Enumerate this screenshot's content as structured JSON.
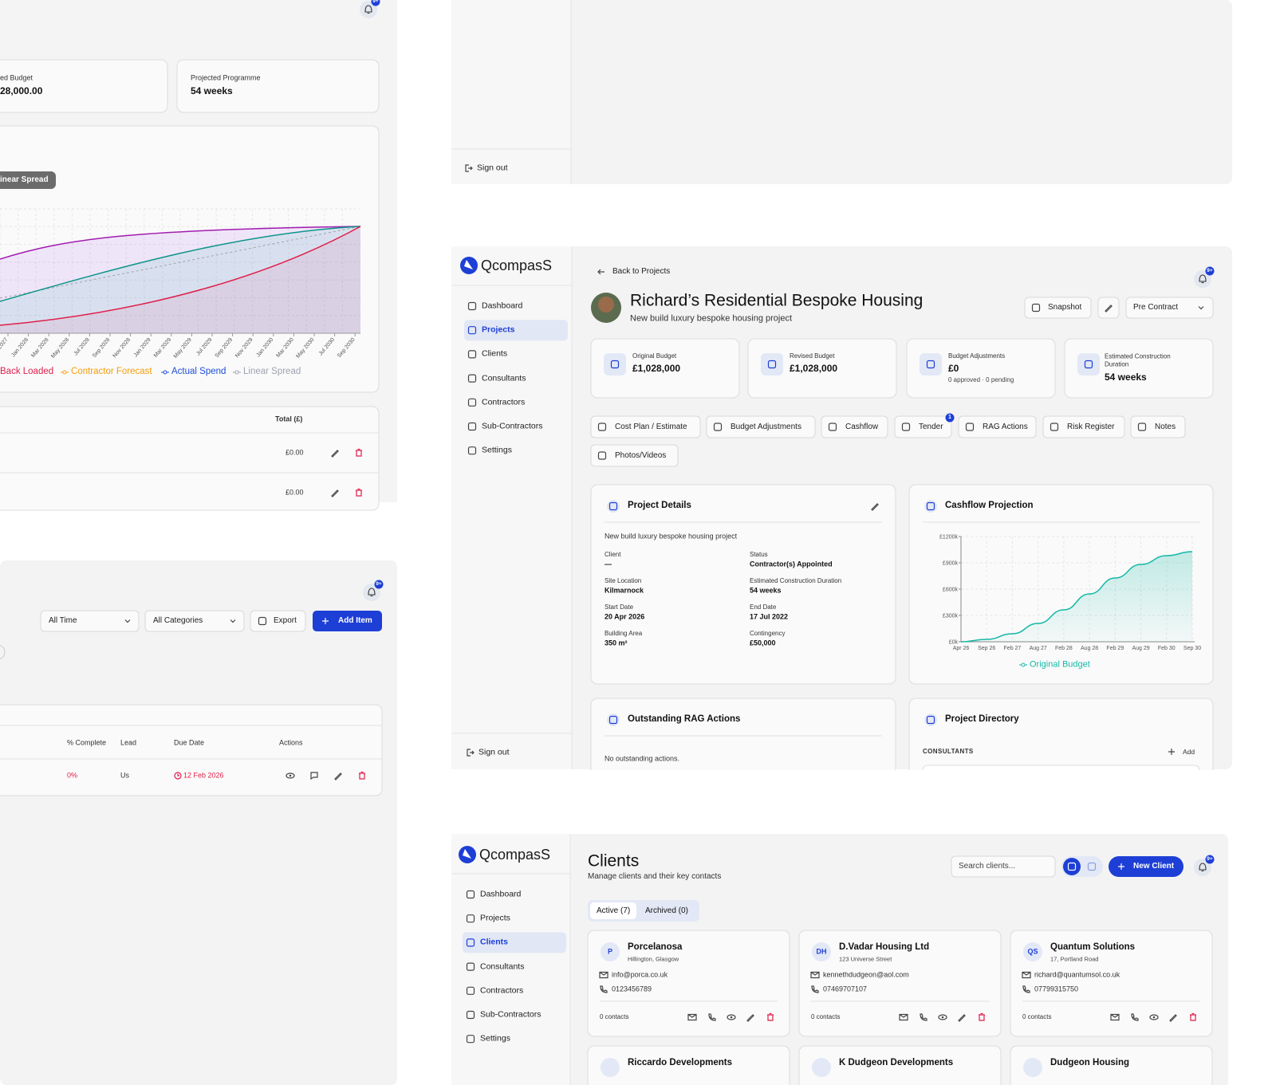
{
  "budget_panel": {
    "notification_badge": "9+",
    "cards": [
      {
        "label": "ed Budget",
        "value": "28,000.00"
      },
      {
        "label": "Projected Programme",
        "value": "54 weeks"
      }
    ],
    "spend_chart": {
      "tooltip": "inear Spread",
      "x_labels": [
        "ov 2027",
        "Jan 2028",
        "Mar 2028",
        "May 2028",
        "Jul 2028",
        "Sep 2028",
        "Nov 2028",
        "Jan 2029",
        "Mar 2029",
        "May 2029",
        "Jul 2029",
        "Sep 2029",
        "Nov 2029",
        "Jan 2030",
        "Mar 2030",
        "May 2030",
        "Jul 2030",
        "Sep 2030"
      ],
      "legend": [
        "Back Loaded",
        "Contractor Forecast",
        "Actual Spend",
        "Linear Spread"
      ]
    },
    "table": {
      "header": "Total (£)",
      "rows": [
        "£0.00",
        "£0.00"
      ]
    }
  },
  "sidebar_panel": {
    "sign_out": "Sign out"
  },
  "items_panel": {
    "notification_badge": "9+",
    "filters": [
      "All Time",
      "All Categories"
    ],
    "export": "Export",
    "add_item": "Add Item",
    "table": {
      "headers": [
        "% Complete",
        "Lead",
        "Due Date",
        "Actions"
      ],
      "row": [
        "0%",
        "Us",
        "12 Feb 2026"
      ]
    }
  },
  "project_panel": {
    "logo": "QcompasS",
    "nav": [
      "Dashboard",
      "Projects",
      "Clients",
      "Consultants",
      "Contractors",
      "Sub-Contractors",
      "Settings"
    ],
    "sign_out": "Sign out",
    "back": "Back to Projects",
    "notification_badge": "9+",
    "title": "Richard’s Residential Bespoke Housing",
    "subtitle": "New build luxury bespoke housing project",
    "snapshot": "Snapshot",
    "status": "Pre Contract",
    "stats": [
      {
        "label": "Original Budget",
        "value": "£1,028,000"
      },
      {
        "label": "Revised Budget",
        "value": "£1,028,000"
      },
      {
        "label": "Budget Adjustments",
        "value": "£0",
        "note": "0 approved · 0 pending"
      },
      {
        "label": "Estimated Construction Duration",
        "value": "54 weeks"
      }
    ],
    "tabs": [
      "Cost Plan / Estimate",
      "Budget Adjustments",
      "Cashflow",
      "Tender",
      "RAG Actions",
      "Risk Register",
      "Notes",
      "Photos/Videos"
    ],
    "tender_badge": "1",
    "details": {
      "title": "Project Details",
      "description": "New build luxury bespoke housing project",
      "fields": [
        {
          "label": "Client",
          "value": "—"
        },
        {
          "label": "Status",
          "value": "Contractor(s) Appointed"
        },
        {
          "label": "Site Location",
          "value": "Kilmarnock"
        },
        {
          "label": "Estimated Construction Duration",
          "value": "54 weeks"
        },
        {
          "label": "Start Date",
          "value": "20 Apr 2026"
        },
        {
          "label": "End Date",
          "value": "17 Jul 2022"
        },
        {
          "label": "Building Area",
          "value": "350 m²"
        },
        {
          "label": "Contingency",
          "value": "£50,000"
        }
      ]
    },
    "cashflow_title": "Cashflow Projection",
    "rag": {
      "title": "Outstanding RAG Actions",
      "empty": "No outstanding actions."
    },
    "directory": {
      "title": "Project Directory",
      "section": "CONSULTANTS",
      "add": "Add"
    }
  },
  "clients_panel": {
    "logo": "QcompasS",
    "nav": [
      "Dashboard",
      "Projects",
      "Clients",
      "Consultants",
      "Contractors",
      "Sub-Contractors",
      "Settings"
    ],
    "title": "Clients",
    "subtitle": "Manage clients and their key contacts",
    "search": "Search clients...",
    "new_client": "New Client",
    "notification_badge": "9+",
    "tabs": [
      "Active (7)",
      "Archived (0)"
    ],
    "clients": [
      {
        "initials": "P",
        "name": "Porcelanosa",
        "address": "Hillington, Glasgow",
        "email": "info@porca.co.uk",
        "phone": "0123456789",
        "contacts": "0 contacts"
      },
      {
        "initials": "DH",
        "name": "D.Vadar Housing Ltd",
        "address": "123 Universe Street",
        "email": "kennethdudgeon@aol.com",
        "phone": "07469707107",
        "contacts": "0 contacts"
      },
      {
        "initials": "QS",
        "name": "Quantum Solutions",
        "address": "17, Portland Road",
        "email": "richard@quantumsol.co.uk",
        "phone": "07799315750",
        "contacts": "0 contacts"
      }
    ],
    "more_clients": [
      "Riccardo Developments",
      "K Dudgeon Developments",
      "Dudgeon Housing"
    ]
  },
  "chart_data": {
    "type": "line",
    "categories": [
      "Apr 26",
      "Sep 26",
      "Feb 27",
      "Aug 27",
      "Feb 28",
      "Aug 28",
      "Feb 29",
      "Aug 29",
      "Feb 30",
      "Sep 30"
    ],
    "series": [
      {
        "name": "Original Budget",
        "color": "#14b8a6",
        "values": [
          0,
          27,
          91,
          209,
          364,
          545,
          727,
          882,
          982,
          1027
        ]
      }
    ],
    "ylim": [
      0,
      1200
    ],
    "yticks": [
      {
        "value": 0,
        "label": "£0k"
      },
      {
        "value": 300,
        "label": "£300k"
      },
      {
        "value": 600,
        "label": "£600k"
      },
      {
        "value": 900,
        "label": "£900k"
      },
      {
        "value": 1200,
        "label": "£1200k"
      }
    ],
    "grid": true
  }
}
